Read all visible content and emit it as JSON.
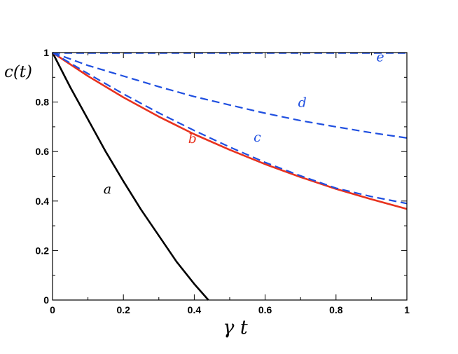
{
  "chart_data": {
    "type": "line",
    "title": "",
    "xlabel": "γ t",
    "ylabel": "c(t)",
    "xlim": [
      0,
      1
    ],
    "ylim": [
      0,
      1
    ],
    "grid": false,
    "x_ticks": [
      0,
      0.2,
      0.4,
      0.6,
      0.8,
      1
    ],
    "x_tick_labels": [
      "0",
      "0.2",
      "0.4",
      "0.6",
      "0.8",
      "1"
    ],
    "y_ticks": [
      0,
      0.2,
      0.4,
      0.6,
      0.8,
      1
    ],
    "y_tick_labels": [
      "0",
      "0.2",
      "0.4",
      "0.6",
      "0.8",
      "1"
    ],
    "series": [
      {
        "name": "a",
        "color": "#000000",
        "dash": "solid",
        "x": [
          0,
          0.05,
          0.1,
          0.15,
          0.2,
          0.25,
          0.3,
          0.35,
          0.4,
          0.44
        ],
        "y": [
          1.0,
          0.86,
          0.73,
          0.6,
          0.48,
          0.365,
          0.26,
          0.155,
          0.065,
          0.0
        ],
        "label_at": [
          0.155,
          0.43
        ]
      },
      {
        "name": "b",
        "color": "#e8321e",
        "dash": "solid",
        "x": [
          0,
          0.1,
          0.2,
          0.3,
          0.4,
          0.5,
          0.6,
          0.7,
          0.8,
          0.9,
          1.0
        ],
        "y": [
          1.0,
          0.905,
          0.819,
          0.741,
          0.67,
          0.607,
          0.549,
          0.497,
          0.449,
          0.407,
          0.368
        ],
        "label_at": [
          0.395,
          0.635
        ]
      },
      {
        "name": "c",
        "color": "#1f4fe0",
        "dash": "dashed",
        "x": [
          0,
          0.1,
          0.2,
          0.3,
          0.4,
          0.5,
          0.6,
          0.7,
          0.8,
          0.9,
          1.0
        ],
        "y": [
          1.0,
          0.915,
          0.833,
          0.756,
          0.685,
          0.618,
          0.556,
          0.502,
          0.452,
          0.418,
          0.39
        ],
        "label_at": [
          0.578,
          0.64
        ]
      },
      {
        "name": "d",
        "color": "#1f4fe0",
        "dash": "dashed",
        "x": [
          0,
          0.1,
          0.2,
          0.3,
          0.4,
          0.5,
          0.6,
          0.7,
          0.8,
          0.9,
          1.0
        ],
        "y": [
          1.0,
          0.948,
          0.905,
          0.862,
          0.822,
          0.788,
          0.755,
          0.725,
          0.7,
          0.676,
          0.655
        ],
        "label_at": [
          0.705,
          0.78
        ]
      },
      {
        "name": "e",
        "color": "#1f4fe0",
        "dash": "dashed",
        "x": [
          0,
          1.0
        ],
        "y": [
          0.998,
          0.998
        ],
        "label_at": [
          0.925,
          0.965
        ]
      }
    ]
  }
}
